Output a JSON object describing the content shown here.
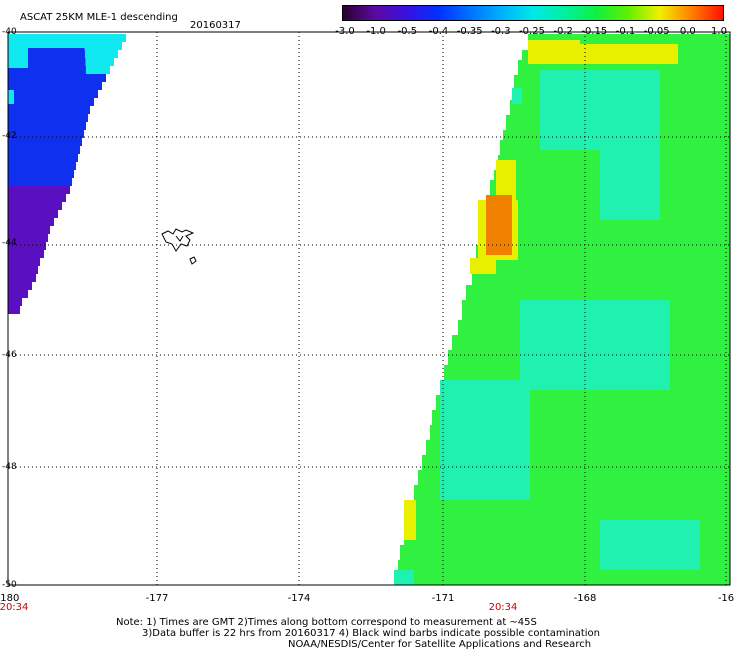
{
  "header": {
    "title": "ASCAT 25KM MLE-1 descending",
    "date": "20160317"
  },
  "colorbar": {
    "tick_labels": [
      "-3.0",
      "-1.0",
      "-0.5",
      "-0.4",
      "-0.35",
      "-0.3",
      "-0.25",
      "-0.2",
      "-0.15",
      "-0.1",
      "-0.05",
      "0.0",
      "1.0"
    ],
    "colors": [
      "#2a0030",
      "#5a0aa0",
      "#3a10e0",
      "#0030ff",
      "#0070ff",
      "#00b0ff",
      "#00e8e8",
      "#00f0a0",
      "#10f040",
      "#60f000",
      "#f0f000",
      "#ff8000",
      "#ff1000"
    ]
  },
  "map": {
    "x_tick_labels": [
      "-180",
      "-177",
      "-174",
      "-171",
      "-168",
      "-16"
    ],
    "y_tick_labels": [
      "-40",
      "-42",
      "-44",
      "-46",
      "-48",
      "-50"
    ],
    "time_labels": [
      "20:34",
      "20:34"
    ],
    "background_color": "#ffffff",
    "grid_color": "#000000",
    "swath_colors": {
      "left_blue": "#1030f0",
      "left_cyan": "#10e8f0",
      "left_purple": "#5a10c0",
      "right_green": "#30f040",
      "right_cyan": "#20f0b0",
      "right_orange": "#f08000",
      "right_yellow": "#e8f000"
    }
  },
  "notes": [
    "Note: 1) Times are GMT 2)Times along bottom correspond to measurement at ~45S",
    "3)Data buffer is 22 hrs from 20160317 4) Black wind barbs indicate possible contamination",
    "NOAA/NESDIS/Center for Satellite Applications and Research"
  ]
}
